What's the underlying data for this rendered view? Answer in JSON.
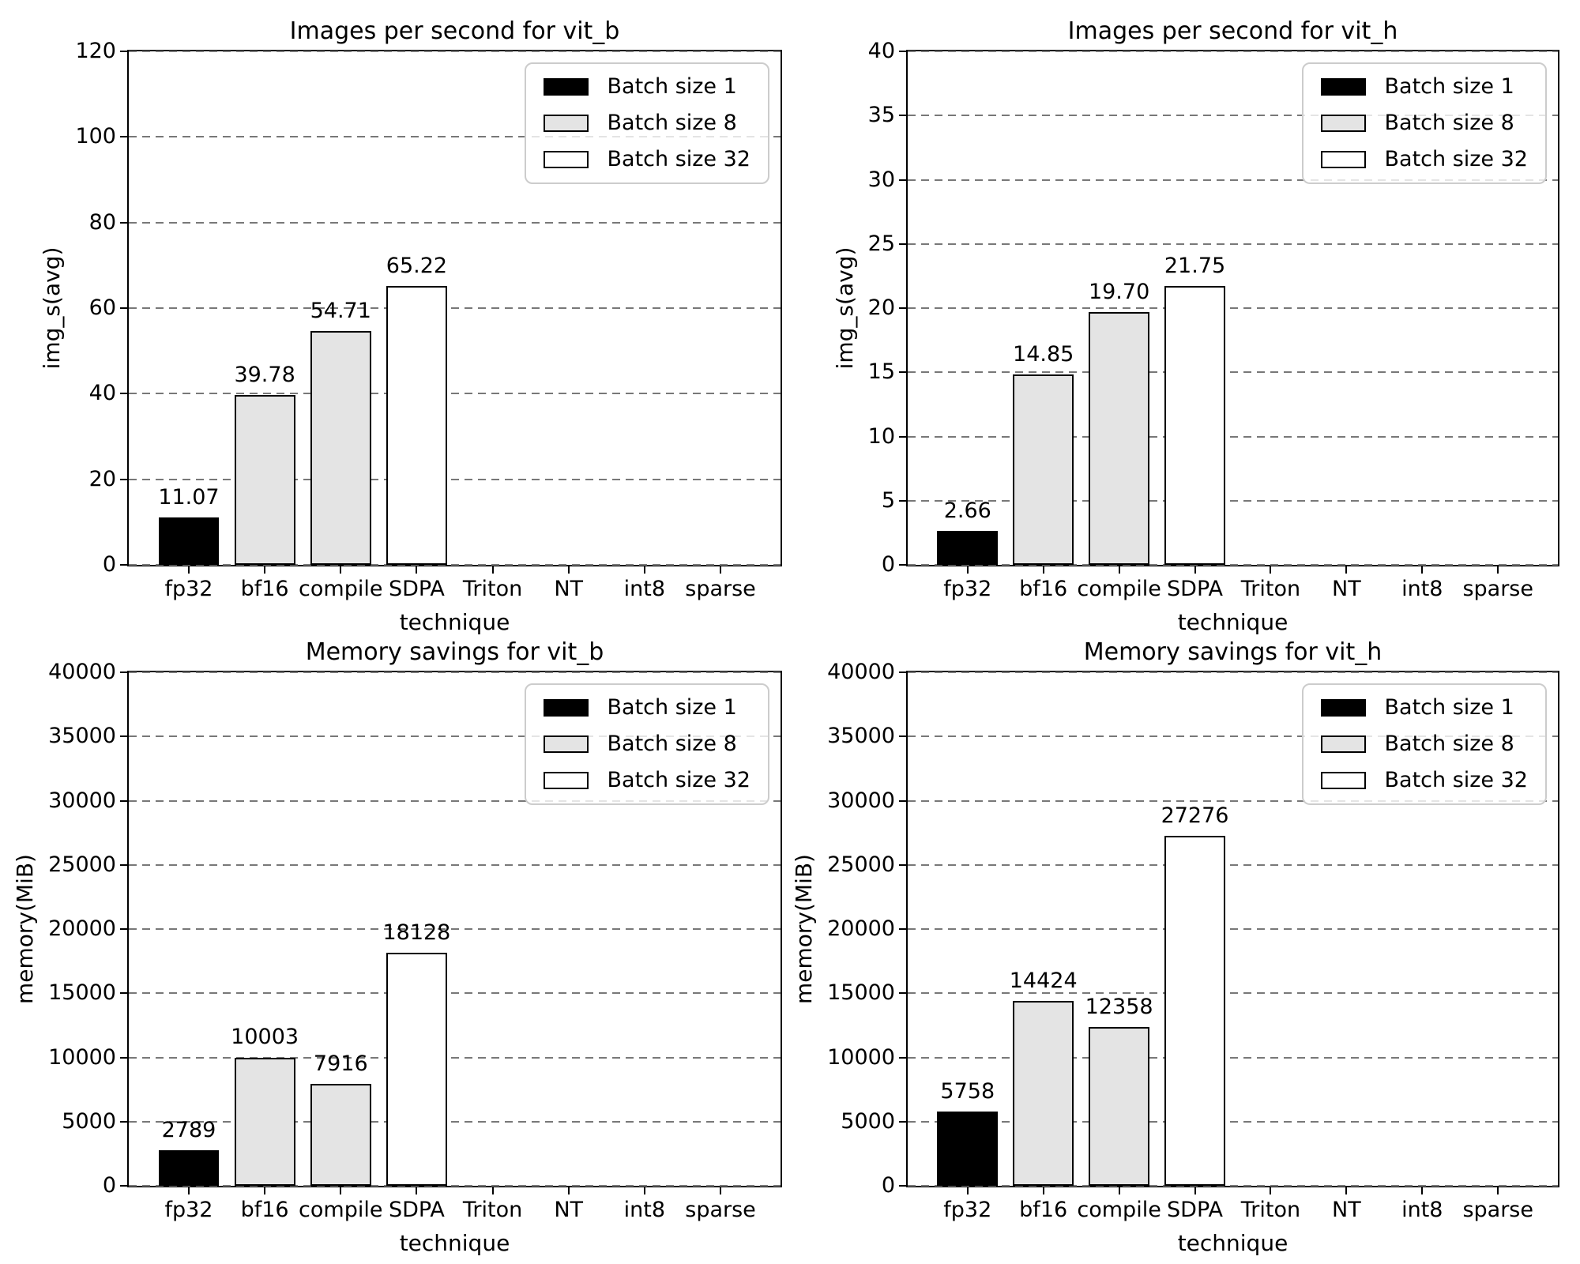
{
  "figure": {
    "background": "#ffffff"
  },
  "colors": {
    "batch_size_1": "#000000",
    "batch_size_8": "#e4e4e4",
    "batch_size_32": "#ffffff",
    "bar_edge": "#000000",
    "grid": "#787878",
    "spine": "#000000",
    "text": "#000000",
    "legend_border": "#cccccc"
  },
  "legend": {
    "position": "upper right",
    "entries": [
      {
        "label": "Batch size 1",
        "batch": "batch_size_1"
      },
      {
        "label": "Batch size 8",
        "batch": "batch_size_8"
      },
      {
        "label": "Batch size 32",
        "batch": "batch_size_32"
      }
    ]
  },
  "chart_data": [
    {
      "id": "images-per-second-vit-b",
      "type": "bar",
      "title": "Images per second for vit_b",
      "xlabel": "technique",
      "ylabel": "img_s(avg)",
      "ylim": [
        0,
        120
      ],
      "yticks": [
        0,
        20,
        40,
        60,
        80,
        100,
        120
      ],
      "grid": true,
      "legend_position": "upper right",
      "categories": [
        "fp32",
        "bf16",
        "compile",
        "SDPA",
        "Triton",
        "NT",
        "int8",
        "sparse"
      ],
      "bars": [
        {
          "category": "fp32",
          "value": 11.07,
          "label": "11.07",
          "batch": "batch_size_1"
        },
        {
          "category": "bf16",
          "value": 39.78,
          "label": "39.78",
          "batch": "batch_size_8"
        },
        {
          "category": "compile",
          "value": 54.71,
          "label": "54.71",
          "batch": "batch_size_8"
        },
        {
          "category": "SDPA",
          "value": 65.22,
          "label": "65.22",
          "batch": "batch_size_32"
        }
      ]
    },
    {
      "id": "images-per-second-vit-h",
      "type": "bar",
      "title": "Images per second for vit_h",
      "xlabel": "technique",
      "ylabel": "img_s(avg)",
      "ylim": [
        0,
        40
      ],
      "yticks": [
        0,
        5,
        10,
        15,
        20,
        25,
        30,
        35,
        40
      ],
      "grid": true,
      "legend_position": "upper right",
      "categories": [
        "fp32",
        "bf16",
        "compile",
        "SDPA",
        "Triton",
        "NT",
        "int8",
        "sparse"
      ],
      "bars": [
        {
          "category": "fp32",
          "value": 2.66,
          "label": "2.66",
          "batch": "batch_size_1"
        },
        {
          "category": "bf16",
          "value": 14.85,
          "label": "14.85",
          "batch": "batch_size_8"
        },
        {
          "category": "compile",
          "value": 19.7,
          "label": "19.70",
          "batch": "batch_size_8"
        },
        {
          "category": "SDPA",
          "value": 21.75,
          "label": "21.75",
          "batch": "batch_size_32"
        }
      ]
    },
    {
      "id": "memory-savings-vit-b",
      "type": "bar",
      "title": "Memory savings for vit_b",
      "xlabel": "technique",
      "ylabel": "memory(MiB)",
      "ylim": [
        0,
        40000
      ],
      "yticks": [
        0,
        5000,
        10000,
        15000,
        20000,
        25000,
        30000,
        35000,
        40000
      ],
      "grid": true,
      "legend_position": "upper right",
      "categories": [
        "fp32",
        "bf16",
        "compile",
        "SDPA",
        "Triton",
        "NT",
        "int8",
        "sparse"
      ],
      "bars": [
        {
          "category": "fp32",
          "value": 2789,
          "label": "2789",
          "batch": "batch_size_1"
        },
        {
          "category": "bf16",
          "value": 10003,
          "label": "10003",
          "batch": "batch_size_8"
        },
        {
          "category": "compile",
          "value": 7916,
          "label": "7916",
          "batch": "batch_size_8"
        },
        {
          "category": "SDPA",
          "value": 18128,
          "label": "18128",
          "batch": "batch_size_32"
        }
      ]
    },
    {
      "id": "memory-savings-vit-h",
      "type": "bar",
      "title": "Memory savings for vit_h",
      "xlabel": "technique",
      "ylabel": "memory(MiB)",
      "ylim": [
        0,
        40000
      ],
      "yticks": [
        0,
        5000,
        10000,
        15000,
        20000,
        25000,
        30000,
        35000,
        40000
      ],
      "grid": true,
      "legend_position": "upper right",
      "categories": [
        "fp32",
        "bf16",
        "compile",
        "SDPA",
        "Triton",
        "NT",
        "int8",
        "sparse"
      ],
      "bars": [
        {
          "category": "fp32",
          "value": 5758,
          "label": "5758",
          "batch": "batch_size_1"
        },
        {
          "category": "bf16",
          "value": 14424,
          "label": "14424",
          "batch": "batch_size_8"
        },
        {
          "category": "compile",
          "value": 12358,
          "label": "12358",
          "batch": "batch_size_8"
        },
        {
          "category": "SDPA",
          "value": 27276,
          "label": "27276",
          "batch": "batch_size_32"
        }
      ]
    }
  ]
}
